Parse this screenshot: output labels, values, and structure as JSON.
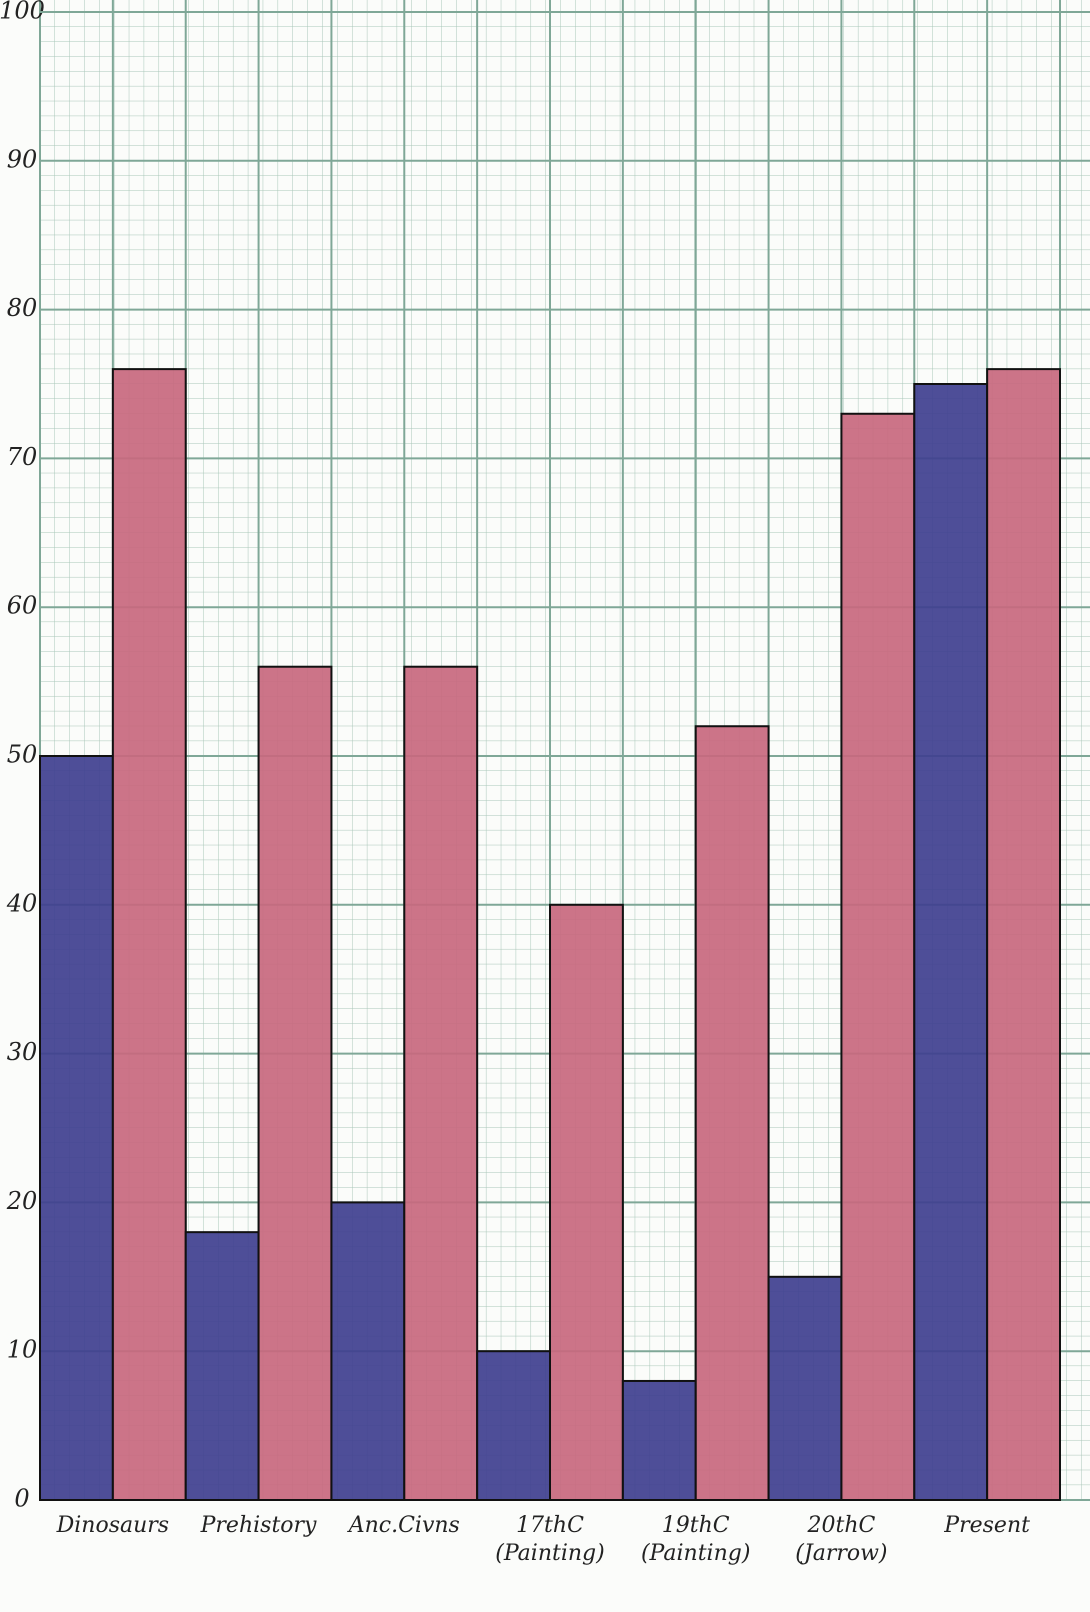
{
  "chart_data": {
    "type": "bar",
    "categories": [
      "Dinosaurs",
      "Prehistory",
      "Anc.Civns",
      "17thC (Painting)",
      "19thC (Painting)",
      "20thC (Jarrow)",
      "Present"
    ],
    "series": [
      {
        "color": "#3f3f8f",
        "values": [
          50,
          18,
          20,
          10,
          8,
          15,
          75
        ]
      },
      {
        "color": "#c8687e",
        "values": [
          76,
          56,
          56,
          40,
          52,
          73,
          76
        ]
      }
    ],
    "ylim": [
      0,
      100
    ],
    "yticks": [
      0,
      10,
      20,
      30,
      40,
      50,
      60,
      70,
      80,
      90,
      100
    ],
    "grid": true
  }
}
